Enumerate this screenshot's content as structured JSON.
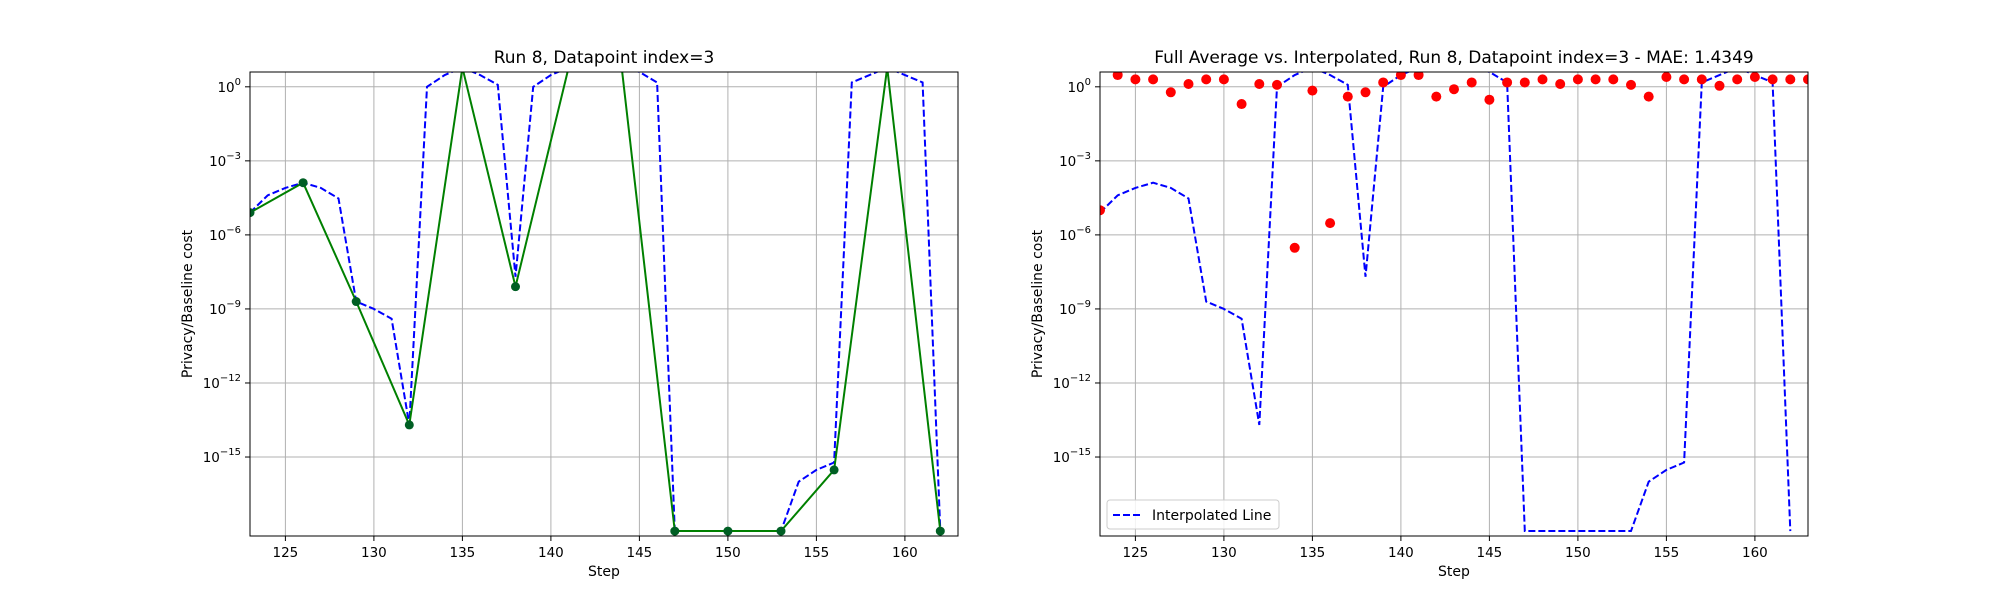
{
  "chart_data": [
    {
      "type": "line",
      "title": "Run 8, Datapoint index=3",
      "xlabel": "Step",
      "ylabel": "Privacy/Baseline cost",
      "xlim": [
        123,
        163
      ],
      "ylim_log10": [
        -18.2,
        0.6
      ],
      "y_scale": "log",
      "grid": true,
      "legend": "none",
      "x_ticks": [
        125,
        130,
        135,
        140,
        145,
        150,
        155,
        160
      ],
      "y_ticks": [
        {
          "value": 1,
          "exp": "0"
        },
        {
          "value": 0.001,
          "exp": "−3"
        },
        {
          "value": 1e-06,
          "exp": "−6"
        },
        {
          "value": 1e-09,
          "exp": "−9"
        },
        {
          "value": 1e-12,
          "exp": "−12"
        },
        {
          "value": 1e-15,
          "exp": "−15"
        }
      ],
      "series": [
        {
          "style": "dashed",
          "color": "#0000ff",
          "x": [
            123,
            124,
            125,
            126,
            127,
            128,
            129,
            130,
            131,
            132,
            133,
            134,
            135,
            136,
            137,
            138,
            139,
            140,
            141,
            142,
            143,
            144,
            145,
            146,
            147,
            148,
            149,
            150,
            151,
            152,
            153,
            154,
            155,
            156,
            157,
            158,
            159,
            160,
            161,
            162
          ],
          "y": [
            8e-06,
            4e-05,
            8e-05,
            0.00013,
            8e-05,
            3e-05,
            2e-09,
            1e-09,
            4e-10,
            2e-14,
            1,
            3,
            6,
            3,
            1.2,
            2e-08,
            1,
            3,
            6,
            6,
            6,
            6,
            4,
            1.5,
            1e-18,
            1e-18,
            1e-18,
            1e-18,
            1e-18,
            1e-18,
            1e-18,
            1e-16,
            3e-16,
            6e-16,
            1.5,
            3,
            6,
            3,
            1.5,
            1e-18
          ]
        },
        {
          "style": "solid-markers",
          "color": "#008000",
          "marker_color": "#005f24",
          "x": [
            123,
            126,
            129,
            132,
            135,
            138,
            141,
            144,
            147,
            150,
            153,
            156,
            159,
            162
          ],
          "y": [
            8e-06,
            0.00013,
            2e-09,
            2e-14,
            6,
            8e-09,
            6,
            6,
            1e-18,
            1e-18,
            1e-18,
            3e-16,
            6,
            1e-18
          ]
        }
      ]
    },
    {
      "type": "line",
      "title": "Full Average vs. Interpolated, Run 8, Datapoint index=3 - MAE: 1.4349",
      "xlabel": "Step",
      "ylabel": "Privacy/Baseline cost",
      "xlim": [
        123,
        163
      ],
      "ylim_log10": [
        -18.2,
        0.6
      ],
      "y_scale": "log",
      "grid": true,
      "legend": "lower-left",
      "x_ticks": [
        125,
        130,
        135,
        140,
        145,
        150,
        155,
        160
      ],
      "y_ticks": [
        {
          "value": 1,
          "exp": "0"
        },
        {
          "value": 0.001,
          "exp": "−3"
        },
        {
          "value": 1e-06,
          "exp": "−6"
        },
        {
          "value": 1e-09,
          "exp": "−9"
        },
        {
          "value": 1e-12,
          "exp": "−12"
        },
        {
          "value": 1e-15,
          "exp": "−15"
        }
      ],
      "series": [
        {
          "name": "Interpolated Line",
          "style": "dashed",
          "color": "#0000ff",
          "x": [
            123,
            124,
            125,
            126,
            127,
            128,
            129,
            130,
            131,
            132,
            133,
            134,
            135,
            136,
            137,
            138,
            139,
            140,
            141,
            142,
            143,
            144,
            145,
            146,
            147,
            148,
            149,
            150,
            151,
            152,
            153,
            154,
            155,
            156,
            157,
            158,
            159,
            160,
            161,
            162
          ],
          "y": [
            8e-06,
            4e-05,
            8e-05,
            0.00013,
            8e-05,
            3e-05,
            2e-09,
            1e-09,
            4e-10,
            2e-14,
            1,
            3,
            6,
            3,
            1.2,
            2e-08,
            1,
            3,
            6,
            6,
            6,
            6,
            4,
            1.5,
            1e-18,
            1e-18,
            1e-18,
            1e-18,
            1e-18,
            1e-18,
            1e-18,
            1e-16,
            3e-16,
            6e-16,
            1.5,
            3,
            6,
            3,
            1.5,
            1e-18
          ]
        },
        {
          "style": "scatter",
          "color": "#ff0000",
          "x": [
            123,
            124,
            125,
            126,
            127,
            128,
            129,
            130,
            131,
            132,
            133,
            134,
            135,
            136,
            137,
            138,
            139,
            140,
            141,
            142,
            143,
            144,
            145,
            146,
            147,
            148,
            149,
            150,
            151,
            152,
            153,
            154,
            155,
            156,
            157,
            158,
            159,
            160,
            161,
            162,
            163
          ],
          "y": [
            1e-05,
            3,
            2,
            2,
            0.6,
            1.3,
            2,
            2,
            0.2,
            1.3,
            1.2,
            3e-07,
            0.7,
            3e-06,
            0.4,
            0.6,
            1.5,
            3,
            3,
            0.4,
            0.8,
            1.5,
            0.3,
            1.5,
            1.5,
            2,
            1.3,
            2,
            2,
            2,
            1.2,
            0.4,
            2.5,
            2,
            2,
            1.1,
            2,
            2.5,
            2,
            2,
            2
          ]
        }
      ]
    }
  ]
}
